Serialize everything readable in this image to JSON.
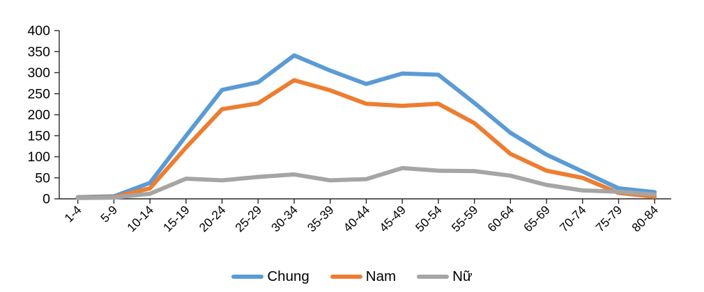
{
  "chart_data": {
    "type": "line",
    "title": "",
    "xlabel": "",
    "ylabel": "",
    "categories": [
      "1-4",
      "5-9",
      "10-14",
      "15-19",
      "20-24",
      "25-29",
      "30-34",
      "35-39",
      "40-44",
      "45-49",
      "50-54",
      "55-59",
      "60-64",
      "65-69",
      "70-74",
      "75-79",
      "80-84"
    ],
    "series": [
      {
        "name": "Chung",
        "color": "#5B9BD5",
        "values": [
          4,
          6,
          38,
          150,
          259,
          277,
          341,
          305,
          273,
          298,
          295,
          228,
          157,
          105,
          65,
          25,
          16
        ]
      },
      {
        "name": "Nam",
        "color": "#ED7D31",
        "values": [
          3,
          4,
          25,
          122,
          213,
          227,
          282,
          258,
          226,
          221,
          226,
          180,
          107,
          67,
          50,
          14,
          5
        ]
      },
      {
        "name": "Nữ",
        "color": "#A5A5A5",
        "values": [
          2,
          3,
          12,
          48,
          44,
          52,
          58,
          44,
          47,
          73,
          67,
          66,
          55,
          33,
          20,
          17,
          10
        ]
      }
    ],
    "ylim": [
      0,
      400
    ],
    "ytick_step": 50,
    "grid": false,
    "legend_position": "bottom",
    "axis_color": "#262626",
    "text_color": "#000000"
  }
}
